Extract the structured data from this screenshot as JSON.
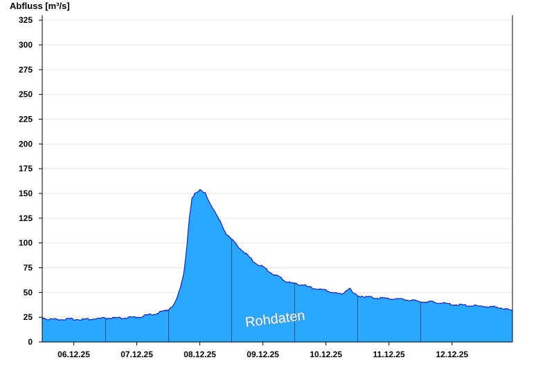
{
  "chart_data": {
    "type": "area",
    "ylabel": "Abfluss [m³/s]",
    "ylim": [
      0,
      330
    ],
    "yticks": [
      0,
      25,
      50,
      75,
      100,
      125,
      150,
      175,
      200,
      225,
      250,
      275,
      300,
      325
    ],
    "grid": true,
    "x_range": [
      "05.12.25 12:00",
      "12.12.25 23:00"
    ],
    "day_separators": [
      "06.12.25 12:00",
      "07.12.25 12:00",
      "08.12.25 12:00",
      "09.12.25 12:00",
      "10.12.25 12:00",
      "11.12.25 12:00"
    ],
    "xticks": [
      {
        "label": "06.12.25",
        "at": "06.12.25 00:00"
      },
      {
        "label": "07.12.25",
        "at": "07.12.25 00:00"
      },
      {
        "label": "08.12.25",
        "at": "08.12.25 00:00"
      },
      {
        "label": "09.12.25",
        "at": "09.12.25 00:00"
      },
      {
        "label": "10.12.25",
        "at": "10.12.25 00:00"
      },
      {
        "label": "11.12.25",
        "at": "11.12.25 00:00"
      },
      {
        "label": "12.12.25",
        "at": "12.12.25 00:00"
      }
    ],
    "annotation": "Rohdaten",
    "colors": {
      "fill": "#2aa8ff",
      "line": "#0000cc",
      "grid": "#e6e6e6",
      "separator": "#1f4f7a"
    },
    "series": [
      {
        "x": [
          "05.12.25 12:00",
          "05.12.25 14:00",
          "05.12.25 18:00",
          "06.12.25 00:00",
          "06.12.25 06:00",
          "06.12.25 12:00",
          "06.12.25 18:00",
          "07.12.25 00:00",
          "07.12.25 06:00",
          "07.12.25 09:00",
          "07.12.25 12:00",
          "07.12.25 13:00",
          "07.12.25 14:00",
          "07.12.25 15:00",
          "07.12.25 16:00",
          "07.12.25 17:00",
          "07.12.25 18:00",
          "07.12.25 19:00",
          "07.12.25 20:00",
          "07.12.25 21:00",
          "07.12.25 22:00",
          "08.12.25 00:00",
          "08.12.25 01:00",
          "08.12.25 02:00",
          "08.12.25 04:00",
          "08.12.25 06:00",
          "08.12.25 08:00",
          "08.12.25 10:00",
          "08.12.25 12:00",
          "08.12.25 14:00",
          "08.12.25 18:00",
          "08.12.25 21:00",
          "09.12.25 00:00",
          "09.12.25 03:00",
          "09.12.25 06:00",
          "09.12.25 09:00",
          "09.12.25 12:00",
          "09.12.25 15:00",
          "09.12.25 18:00",
          "10.12.25 00:00",
          "10.12.25 06:00",
          "10.12.25 09:00",
          "10.12.25 10:00",
          "10.12.25 12:00",
          "10.12.25 18:00",
          "11.12.25 00:00",
          "11.12.25 06:00",
          "11.12.25 12:00",
          "11.12.25 18:00",
          "12.12.25 00:00",
          "12.12.25 06:00",
          "12.12.25 12:00",
          "12.12.25 18:00",
          "12.12.25 21:00",
          "12.12.25 23:00"
        ],
        "values": [
          25,
          23,
          23,
          23,
          23,
          24,
          24,
          25,
          28,
          30,
          33,
          35,
          37,
          42,
          50,
          60,
          72,
          95,
          125,
          145,
          150,
          154,
          151,
          150,
          140,
          130,
          120,
          110,
          104,
          98,
          88,
          80,
          76,
          70,
          66,
          61,
          59,
          58,
          55,
          52,
          48,
          55,
          50,
          47,
          45,
          44,
          43,
          41,
          40,
          38,
          37,
          36,
          35,
          33,
          31
        ]
      }
    ]
  }
}
